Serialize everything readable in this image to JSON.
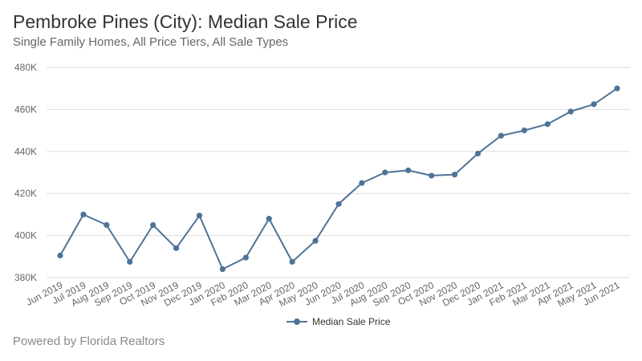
{
  "chart_data": {
    "type": "line",
    "title": "Pembroke Pines (City): Median Sale Price",
    "subtitle": "Single Family Homes, All Price Tiers, All Sale Types",
    "categories": [
      "Jun 2019",
      "Jul 2019",
      "Aug 2019",
      "Sep 2019",
      "Oct 2019",
      "Nov 2019",
      "Dec 2019",
      "Jan 2020",
      "Feb 2020",
      "Mar 2020",
      "Apr 2020",
      "May 2020",
      "Jun 2020",
      "Jul 2020",
      "Aug 2020",
      "Sep 2020",
      "Oct 2020",
      "Nov 2020",
      "Dec 2020",
      "Jan 2021",
      "Feb 2021",
      "Mar 2021",
      "Apr 2021",
      "May 2021",
      "Jun 2021"
    ],
    "series": [
      {
        "name": "Median Sale Price",
        "color": "#4e7398",
        "values": [
          390500,
          410000,
          405000,
          387500,
          405000,
          394000,
          409500,
          384000,
          389500,
          408000,
          387500,
          397500,
          415000,
          425000,
          430000,
          431000,
          428500,
          429000,
          439000,
          447500,
          450000,
          453000,
          459000,
          462500,
          470000
        ]
      }
    ],
    "ylim": [
      380000,
      480000
    ],
    "yticks": [
      380000,
      400000,
      420000,
      440000,
      460000,
      480000
    ],
    "ytick_labels": [
      "380K",
      "400K",
      "420K",
      "440K",
      "460K",
      "480K"
    ],
    "xlabel": "",
    "ylabel": "",
    "grid": true,
    "legend_position": "bottom-center"
  },
  "footer": "Powered by Florida Realtors",
  "colors": {
    "series": "#4e7398",
    "grid": "#dddddd",
    "axis_text": "#666666"
  }
}
